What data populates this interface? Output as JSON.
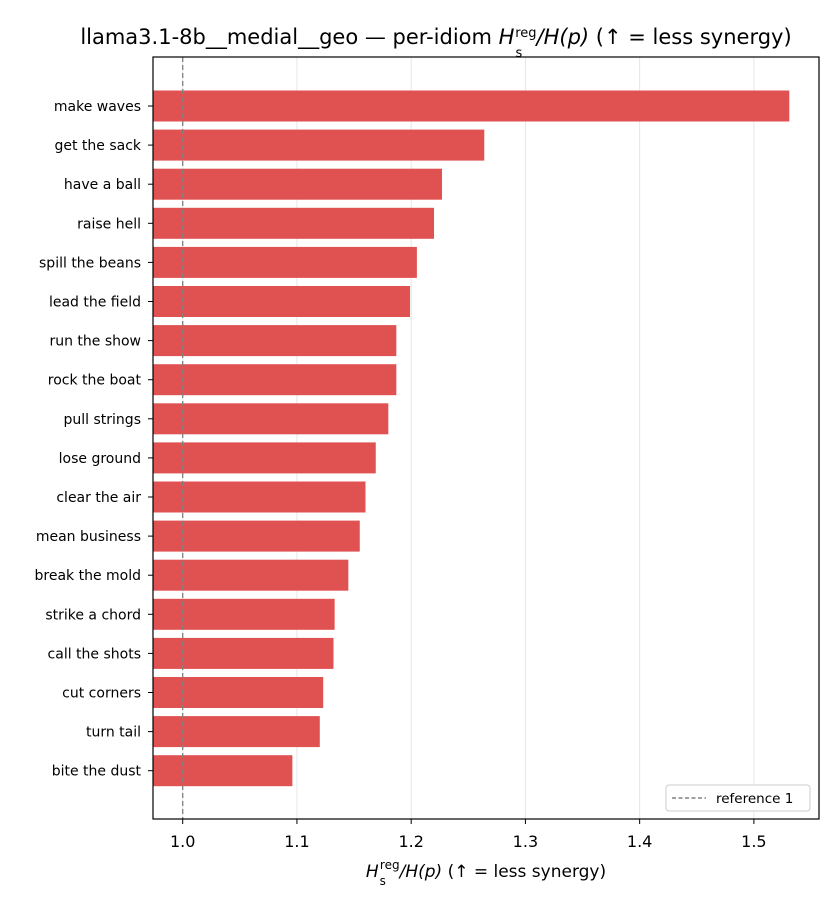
{
  "chart_data": {
    "type": "bar",
    "orientation": "horizontal",
    "title": {
      "prefix": "llama3.1-8b__medial__geo — per-idiom ",
      "math_main": "H",
      "math_sup": "reg",
      "math_sub": "s",
      "math_rest": "/H(p)",
      "suffix": "  (↑ = less synergy)"
    },
    "xlabel": {
      "math_main": "H",
      "math_sup": "reg",
      "math_sub": "s",
      "math_rest": "/H(p)",
      "suffix": "  (↑ = less synergy)"
    },
    "categories": [
      "make waves",
      "get the sack",
      "have a ball",
      "raise hell",
      "spill the beans",
      "lead the field",
      "run the show",
      "rock the boat",
      "pull strings",
      "lose ground",
      "clear the air",
      "mean business",
      "break the mold",
      "strike a chord",
      "call the shots",
      "cut corners",
      "turn tail",
      "bite the dust"
    ],
    "values": [
      1.531,
      1.264,
      1.227,
      1.22,
      1.205,
      1.199,
      1.187,
      1.187,
      1.18,
      1.169,
      1.16,
      1.155,
      1.145,
      1.133,
      1.132,
      1.123,
      1.12,
      1.096
    ],
    "xlim": [
      0.974,
      1.557
    ],
    "xticks": [
      1.0,
      1.1,
      1.2,
      1.3,
      1.4,
      1.5
    ],
    "xtick_labels": [
      "1.0",
      "1.1",
      "1.2",
      "1.3",
      "1.4",
      "1.5"
    ],
    "bar_color": "#e05252",
    "reference_line": {
      "value": 1.0,
      "label": "reference 1",
      "color": "#808080",
      "style": "dashed"
    },
    "grid": "x",
    "legend": "lower-right"
  }
}
